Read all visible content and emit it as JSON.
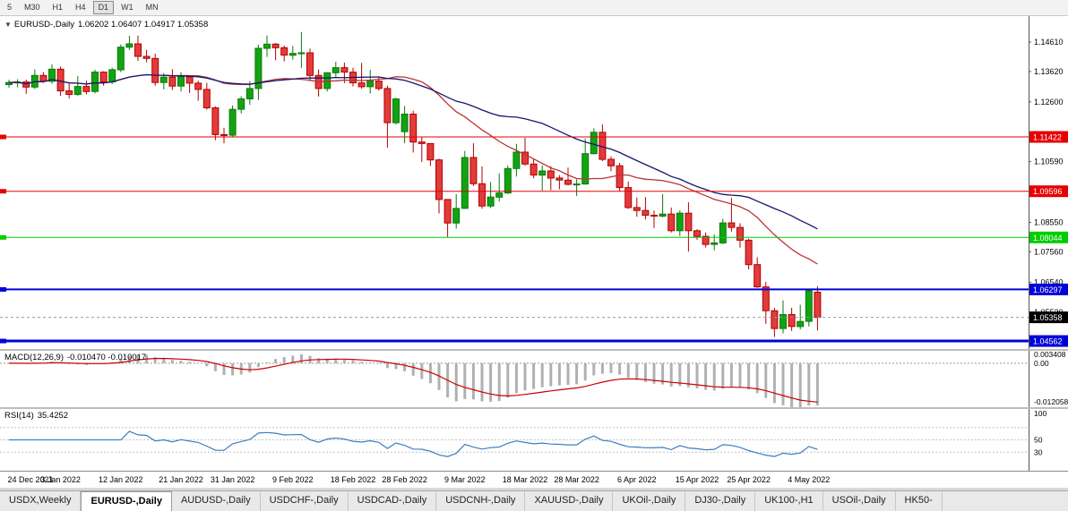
{
  "toolbar": {
    "timeframes": [
      {
        "label": "5",
        "active": false
      },
      {
        "label": "M30",
        "active": false
      },
      {
        "label": "H1",
        "active": false
      },
      {
        "label": "H4",
        "active": false
      },
      {
        "label": "D1",
        "active": true
      },
      {
        "label": "W1",
        "active": false
      },
      {
        "label": "MN",
        "active": false
      }
    ]
  },
  "chart_data": {
    "type": "candlestick",
    "symbol": "EURUSD-,Daily",
    "price_panel": {
      "title_symbol": "EURUSD-,Daily",
      "title_ohlc": "1.06202 1.06407 1.04917 1.05358",
      "ylim": [
        1.04293,
        1.15483
      ],
      "axis_ticks": [
        "1.14610",
        "1.13620",
        "1.12600",
        "1.10590",
        "1.08550",
        "1.07560",
        "1.06540",
        "1.05520"
      ],
      "hlines": [
        {
          "price": 1.11422,
          "label": "1.11422",
          "color": "#e60000",
          "width": 1
        },
        {
          "price": 1.09596,
          "label": "1.09596",
          "color": "#e60000",
          "width": 1
        },
        {
          "price": 1.08044,
          "label": "1.08044",
          "color": "#00cc00",
          "width": 1
        },
        {
          "price": 1.06297,
          "label": "1.06297",
          "color": "#0000d8",
          "width": 2
        },
        {
          "price": 1.04562,
          "label": "1.04562",
          "color": "#0000d8",
          "width": 3
        }
      ],
      "current_price": {
        "price": 1.05358,
        "label": "1.05358",
        "bg": "#000000"
      },
      "moving_averages": [
        {
          "period": 20,
          "color": "#bb3333",
          "name": "ma-fast"
        },
        {
          "period": 34,
          "color": "#16166e",
          "name": "ma-slow"
        }
      ],
      "colors": {
        "bull_fill": "#12a312",
        "bull_stroke": "#0b7a0b",
        "bear_fill": "#e23b3b",
        "bear_stroke": "#b40000"
      },
      "candles": [
        [
          1.1318,
          1.1334,
          1.1308,
          1.1325
        ],
        [
          1.1325,
          1.1336,
          1.1309,
          1.1327
        ],
        [
          1.1327,
          1.1335,
          1.1287,
          1.131
        ],
        [
          1.131,
          1.1369,
          1.1303,
          1.1349
        ],
        [
          1.1349,
          1.136,
          1.1324,
          1.1329
        ],
        [
          1.1329,
          1.1386,
          1.1321,
          1.137
        ],
        [
          1.137,
          1.1379,
          1.128,
          1.1297
        ],
        [
          1.1297,
          1.1323,
          1.1272,
          1.1285
        ],
        [
          1.1285,
          1.1347,
          1.1281,
          1.1312
        ],
        [
          1.1312,
          1.1332,
          1.1285,
          1.1295
        ],
        [
          1.1295,
          1.1368,
          1.1289,
          1.136
        ],
        [
          1.136,
          1.1363,
          1.1314,
          1.1327
        ],
        [
          1.1327,
          1.1375,
          1.132,
          1.1368
        ],
        [
          1.1368,
          1.1453,
          1.136,
          1.1444
        ],
        [
          1.1444,
          1.1482,
          1.1434,
          1.1455
        ],
        [
          1.1455,
          1.1483,
          1.1398,
          1.1413
        ],
        [
          1.1413,
          1.1435,
          1.1393,
          1.1406
        ],
        [
          1.1406,
          1.1422,
          1.1314,
          1.1325
        ],
        [
          1.1325,
          1.1357,
          1.1302,
          1.1343
        ],
        [
          1.1343,
          1.137,
          1.13,
          1.1313
        ],
        [
          1.1313,
          1.136,
          1.1295,
          1.1344
        ],
        [
          1.1344,
          1.1348,
          1.129,
          1.1323
        ],
        [
          1.1323,
          1.1331,
          1.1264,
          1.1302
        ],
        [
          1.1302,
          1.1324,
          1.1234,
          1.124
        ],
        [
          1.124,
          1.1245,
          1.1131,
          1.115
        ],
        [
          1.115,
          1.1173,
          1.1121,
          1.1148
        ],
        [
          1.1148,
          1.1248,
          1.1141,
          1.1235
        ],
        [
          1.1235,
          1.1279,
          1.1221,
          1.127
        ],
        [
          1.127,
          1.133,
          1.125,
          1.1305
        ],
        [
          1.1305,
          1.1452,
          1.1266,
          1.144
        ],
        [
          1.144,
          1.1483,
          1.1411,
          1.1454
        ],
        [
          1.1454,
          1.1458,
          1.14,
          1.1442
        ],
        [
          1.1442,
          1.1449,
          1.1396,
          1.1417
        ],
        [
          1.1417,
          1.1448,
          1.1402,
          1.1423
        ],
        [
          1.1423,
          1.1495,
          1.1374,
          1.1425
        ],
        [
          1.1425,
          1.1439,
          1.133,
          1.1349
        ],
        [
          1.1349,
          1.1369,
          1.1278,
          1.1305
        ],
        [
          1.1305,
          1.136,
          1.1295,
          1.1358
        ],
        [
          1.1358,
          1.1395,
          1.134,
          1.1375
        ],
        [
          1.1375,
          1.1392,
          1.1323,
          1.136
        ],
        [
          1.136,
          1.1374,
          1.1312,
          1.1324
        ],
        [
          1.1324,
          1.1391,
          1.1304,
          1.1311
        ],
        [
          1.1311,
          1.1368,
          1.1288,
          1.133
        ],
        [
          1.133,
          1.1342,
          1.1298,
          1.1305
        ],
        [
          1.1305,
          1.1315,
          1.1106,
          1.119
        ],
        [
          1.119,
          1.1274,
          1.1184,
          1.127
        ],
        [
          1.116,
          1.1246,
          1.1121,
          1.1219
        ],
        [
          1.1219,
          1.123,
          1.109,
          1.1125
        ],
        [
          1.1125,
          1.1143,
          1.1058,
          1.112
        ],
        [
          1.112,
          1.1121,
          1.1045,
          1.1065
        ],
        [
          1.1065,
          1.1069,
          1.0885,
          1.0932
        ],
        [
          1.0932,
          1.0932,
          1.0806,
          1.0853
        ],
        [
          1.0853,
          1.095,
          1.0834,
          1.0902
        ],
        [
          1.0902,
          1.1095,
          1.09,
          1.1073
        ],
        [
          1.1073,
          1.1121,
          1.0977,
          1.0985
        ],
        [
          1.0985,
          1.1043,
          1.0901,
          1.091
        ],
        [
          1.091,
          1.0991,
          1.0903,
          1.094
        ],
        [
          1.094,
          1.102,
          1.0925,
          1.0954
        ],
        [
          1.0954,
          1.1046,
          1.095,
          1.1036
        ],
        [
          1.1036,
          1.1119,
          1.1009,
          1.1091
        ],
        [
          1.1091,
          1.1139,
          1.1045,
          1.1051
        ],
        [
          1.1051,
          1.1069,
          1.1003,
          1.1014
        ],
        [
          1.1014,
          1.1046,
          1.0962,
          1.1028
        ],
        [
          1.1028,
          1.1044,
          1.0963,
          1.1004
        ],
        [
          1.1004,
          1.1014,
          1.0966,
          1.0997
        ],
        [
          1.0997,
          1.1039,
          1.0979,
          1.0983
        ],
        [
          1.0983,
          1.1,
          1.0944,
          1.0984
        ],
        [
          1.0984,
          1.1137,
          1.0982,
          1.1086
        ],
        [
          1.1086,
          1.1171,
          1.1084,
          1.1158
        ],
        [
          1.1158,
          1.1184,
          1.1061,
          1.1067
        ],
        [
          1.1067,
          1.1077,
          1.1027,
          1.1045
        ],
        [
          1.1045,
          1.1055,
          1.096,
          1.0972
        ],
        [
          1.0972,
          1.0992,
          1.09,
          1.0905
        ],
        [
          1.0905,
          1.0939,
          1.0874,
          1.0895
        ],
        [
          1.0895,
          1.094,
          1.0865,
          1.0879
        ],
        [
          1.0879,
          1.0895,
          1.0836,
          1.0876
        ],
        [
          1.0876,
          1.095,
          1.0872,
          1.0883
        ],
        [
          1.0883,
          1.0905,
          1.0821,
          1.0827
        ],
        [
          1.0827,
          1.0896,
          1.0809,
          1.0886
        ],
        [
          1.0886,
          1.0923,
          1.0757,
          1.0827
        ],
        [
          1.0827,
          1.0832,
          1.0796,
          1.0808
        ],
        [
          1.0808,
          1.0821,
          1.077,
          1.0781
        ],
        [
          1.0781,
          1.0815,
          1.0761,
          1.0786
        ],
        [
          1.0786,
          1.0867,
          1.0782,
          1.0853
        ],
        [
          1.0853,
          1.0937,
          1.0824,
          1.0838
        ],
        [
          1.0838,
          1.0852,
          1.077,
          1.0795
        ],
        [
          1.0795,
          1.08,
          1.0697,
          1.0713
        ],
        [
          1.0713,
          1.0738,
          1.0635,
          1.0638
        ],
        [
          1.0638,
          1.0655,
          1.0514,
          1.0558
        ],
        [
          1.0558,
          1.0567,
          1.047,
          1.0498
        ],
        [
          1.0498,
          1.0593,
          1.0482,
          1.0545
        ],
        [
          1.0545,
          1.0568,
          1.049,
          1.0505
        ],
        [
          1.0505,
          1.0578,
          1.0495,
          1.0522
        ],
        [
          1.0522,
          1.0632,
          1.0505,
          1.0625
        ],
        [
          1.06202,
          1.06407,
          1.04917,
          1.05358
        ]
      ]
    },
    "x_labels": [
      {
        "i": 0,
        "label": "24 Dec 2021"
      },
      {
        "i": 6,
        "label": "3 Jan 2022"
      },
      {
        "i": 13,
        "label": "12 Jan 2022"
      },
      {
        "i": 20,
        "label": "21 Jan 2022"
      },
      {
        "i": 26,
        "label": "31 Jan 2022"
      },
      {
        "i": 33,
        "label": "9 Feb 2022"
      },
      {
        "i": 40,
        "label": "18 Feb 2022"
      },
      {
        "i": 46,
        "label": "28 Feb 2022"
      },
      {
        "i": 53,
        "label": "9 Mar 2022"
      },
      {
        "i": 60,
        "label": "18 Mar 2022"
      },
      {
        "i": 66,
        "label": "28 Mar 2022"
      },
      {
        "i": 73,
        "label": "6 Apr 2022"
      },
      {
        "i": 80,
        "label": "15 Apr 2022"
      },
      {
        "i": 86,
        "label": "25 Apr 2022"
      },
      {
        "i": 93,
        "label": "4 May 2022"
      }
    ],
    "macd_panel": {
      "label": "MACD(12,26,9)",
      "values": "-0.010470 -0.010017",
      "params": [
        12,
        26,
        9
      ],
      "ylim": [
        -0.012058,
        0.003408
      ],
      "axis_ticks": [
        "0.003408",
        "0.00",
        "-0.012058"
      ],
      "histogram_color": "#b0b0b0",
      "signal_color": "#cc0000"
    },
    "rsi_panel": {
      "label": "RSI(14)",
      "value": "35.4252",
      "period": 14,
      "ylim": [
        0,
        100
      ],
      "levels": [
        30,
        50,
        70
      ],
      "axis_ticks": [
        "100",
        "50",
        "30"
      ],
      "line_color": "#3c7ebf"
    }
  },
  "tabs": {
    "items": [
      {
        "label": "USDX,Weekly",
        "active": false
      },
      {
        "label": "EURUSD-,Daily",
        "active": true
      },
      {
        "label": "AUDUSD-,Daily",
        "active": false
      },
      {
        "label": "USDCHF-,Daily",
        "active": false
      },
      {
        "label": "USDCAD-,Daily",
        "active": false
      },
      {
        "label": "USDCNH-,Daily",
        "active": false
      },
      {
        "label": "XAUUSD-,Daily",
        "active": false
      },
      {
        "label": "UKOil-,Daily",
        "active": false
      },
      {
        "label": "DJ30-,Daily",
        "active": false
      },
      {
        "label": "UK100-,H1",
        "active": false
      },
      {
        "label": "USOil-,Daily",
        "active": false
      },
      {
        "label": "HK50-",
        "active": false
      }
    ]
  }
}
